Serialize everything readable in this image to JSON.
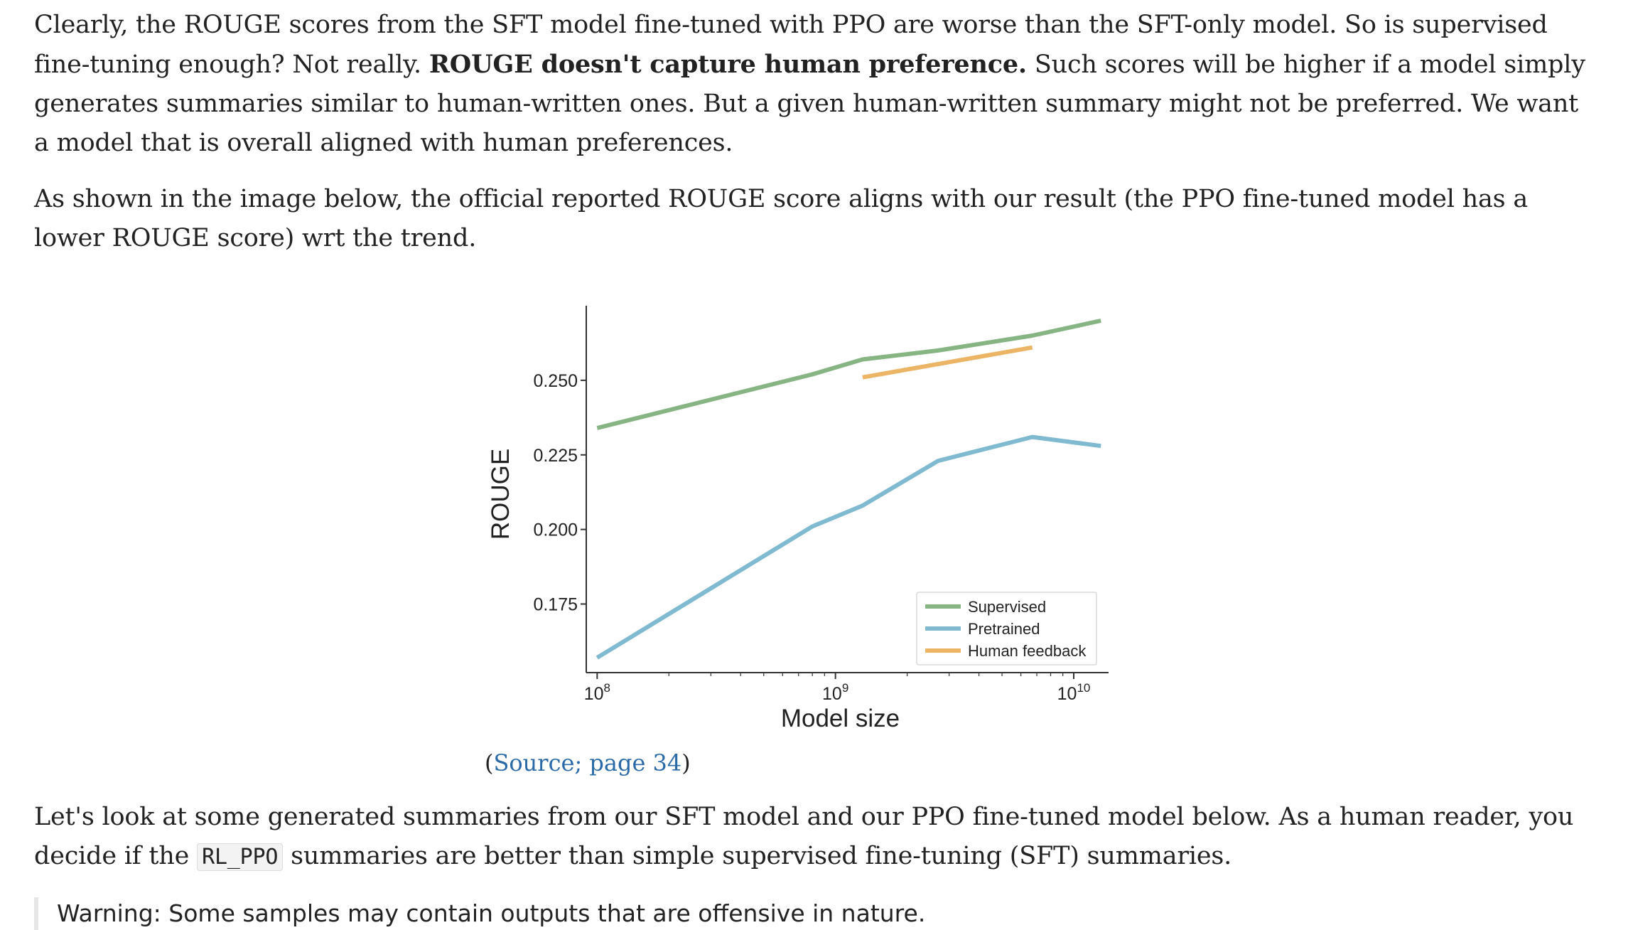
{
  "article": {
    "para1": {
      "before": "Clearly, the ROUGE scores from the SFT model fine-tuned with PPO are worse than the SFT-only model. So is supervised fine-tuning enough? Not really. ",
      "bold": "ROUGE doesn't capture human preference.",
      "after": " Such scores will be higher if a model simply generates summaries similar to human-written ones. But a given human-written summary might not be preferred. We want a model that is overall aligned with human preferences."
    },
    "para2": "As shown in the image below, the official reported ROUGE score aligns with our result (the PPO fine-tuned model has a lower ROUGE score) wrt the trend.",
    "caption": {
      "open": "(",
      "link": "Source; page 34",
      "close": ")"
    },
    "para3": {
      "before": "Let's look at some generated summaries from our SFT model and our PPO fine-tuned model below. As a human reader, you decide if the ",
      "code": "RL_PPO",
      "after": " summaries are better than simple supervised fine-tuning (SFT) summaries."
    },
    "warning": "Warning: Some samples may contain outputs that are offensive in nature."
  },
  "chart_data": {
    "type": "line",
    "xlabel": "Model size",
    "ylabel": "ROUGE",
    "xscale": "log",
    "xlim": [
      90000000,
      14000000000
    ],
    "ylim": [
      0.152,
      0.275
    ],
    "xticks": [
      {
        "value": 100000000,
        "base": "10",
        "exp": "8"
      },
      {
        "value": 1000000000,
        "base": "10",
        "exp": "9"
      },
      {
        "value": 10000000000,
        "base": "10",
        "exp": "10"
      }
    ],
    "yticks": [
      {
        "value": 0.175,
        "label": "0.175"
      },
      {
        "value": 0.2,
        "label": "0.200"
      },
      {
        "value": 0.225,
        "label": "0.225"
      },
      {
        "value": 0.25,
        "label": "0.250"
      }
    ],
    "grid": false,
    "legend_position": "bottom-right",
    "series": [
      {
        "name": "Supervised",
        "color": "#86b583",
        "x": [
          100000000,
          800000000,
          1300000000,
          2700000000,
          6700000000,
          13000000000
        ],
        "y": [
          0.234,
          0.252,
          0.257,
          0.26,
          0.265,
          0.27
        ]
      },
      {
        "name": "Pretrained",
        "color": "#7fbad0",
        "x": [
          100000000,
          800000000,
          1300000000,
          2700000000,
          6700000000,
          13000000000
        ],
        "y": [
          0.157,
          0.201,
          0.208,
          0.223,
          0.231,
          0.228
        ]
      },
      {
        "name": "Human feedback",
        "color": "#ecb465",
        "x": [
          1300000000,
          6700000000
        ],
        "y": [
          0.251,
          0.261
        ]
      }
    ]
  }
}
